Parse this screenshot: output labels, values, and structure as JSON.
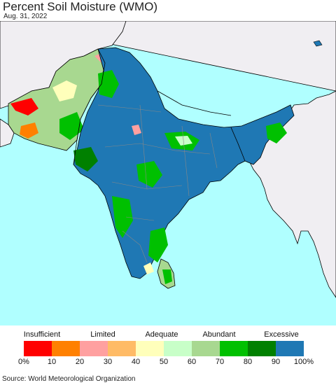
{
  "title": "Percent Soil Moisture (WMO)",
  "date": "Aug. 31, 2022",
  "legend": {
    "categories": [
      {
        "label": "Insufficient"
      },
      {
        "label": "Limited"
      },
      {
        "label": "Adequate"
      },
      {
        "label": "Abundant"
      },
      {
        "label": "Excessive"
      }
    ],
    "colors": [
      "#ff0000",
      "#ff8000",
      "#ffa0a0",
      "#ffbb66",
      "#ffffbb",
      "#c8ffc8",
      "#a8d890",
      "#00c000",
      "#008000",
      "#1f78b4"
    ],
    "ticks": [
      "0%",
      "10",
      "20",
      "30",
      "40",
      "50",
      "60",
      "70",
      "80",
      "90",
      "100%"
    ]
  },
  "colors": {
    "sea": "#b0ffff",
    "land_outside": "#f0eef2",
    "border": "#000000",
    "state_border": "#888888"
  },
  "source": "Source: World Meteorological Organization"
}
